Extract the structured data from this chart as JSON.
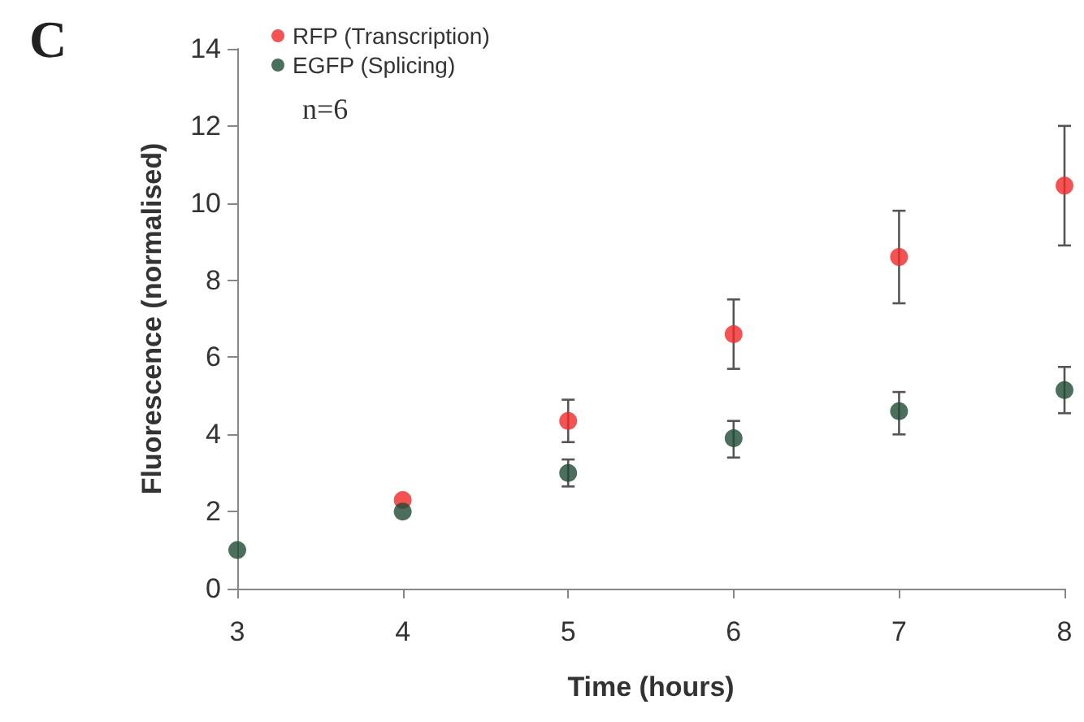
{
  "chart_data": {
    "type": "scatter",
    "xlabel": "Time (hours)",
    "ylabel": "Fluorescence (normalised)",
    "annotations": [
      "C",
      "n=6"
    ],
    "x": [
      3,
      4,
      5,
      6,
      7,
      8
    ],
    "series": [
      {
        "name": "RFP (Transcription)",
        "color": "#f02828",
        "values": [
          null,
          2.3,
          4.35,
          6.6,
          8.6,
          10.45
        ],
        "errors": [
          null,
          null,
          [
            3.8,
            4.9
          ],
          [
            5.7,
            7.5
          ],
          [
            7.4,
            9.8
          ],
          [
            8.9,
            12.0
          ]
        ]
      },
      {
        "name": "EGFP (Splicing)",
        "color": "#1f4a35",
        "values": [
          1.0,
          2.0,
          3.0,
          3.9,
          4.6,
          5.15
        ],
        "errors": [
          null,
          null,
          [
            2.65,
            3.35
          ],
          [
            3.4,
            4.35
          ],
          [
            4.0,
            5.1
          ],
          [
            4.55,
            5.75
          ]
        ]
      }
    ],
    "xlim": [
      3,
      8
    ],
    "xticks": [
      3,
      4,
      5,
      6,
      7,
      8
    ],
    "ylim": [
      0,
      14
    ],
    "yticks": [
      0,
      2,
      4,
      6,
      8,
      10,
      12,
      14
    ],
    "grid": false,
    "legend": "top left",
    "marker": "circle"
  }
}
